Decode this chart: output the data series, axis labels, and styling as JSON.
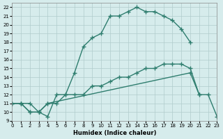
{
  "xlabel": "Humidex (Indice chaleur)",
  "bg_color": "#d6ecec",
  "grid_color": "#b0cccc",
  "line_color": "#2e7d6e",
  "xlim": [
    0,
    23
  ],
  "ylim": [
    9,
    22.5
  ],
  "xticks": [
    0,
    1,
    2,
    3,
    4,
    5,
    6,
    7,
    8,
    9,
    10,
    11,
    12,
    13,
    14,
    15,
    16,
    17,
    18,
    19,
    20,
    21,
    22,
    23
  ],
  "yticks": [
    9,
    10,
    11,
    12,
    13,
    14,
    15,
    16,
    17,
    18,
    19,
    20,
    21,
    22
  ],
  "line1_x": [
    0,
    1,
    2,
    3,
    4,
    5,
    6,
    7,
    8,
    9,
    10,
    11,
    12,
    13,
    14,
    15,
    16,
    17,
    18,
    19,
    20
  ],
  "line1_y": [
    11,
    11,
    11,
    10,
    9.5,
    12,
    12,
    14.5,
    17.5,
    18.5,
    19,
    21,
    21,
    21.5,
    22,
    21.5,
    21.5,
    21,
    20.5,
    19.5,
    18
  ],
  "line2_x": [
    0,
    1,
    2,
    3,
    4,
    5,
    6,
    7,
    8,
    9,
    10,
    11,
    12,
    13,
    14,
    15,
    16,
    17,
    18,
    19,
    20,
    21
  ],
  "line2_y": [
    11,
    11,
    10,
    10,
    11,
    11,
    12,
    12,
    12,
    13,
    13,
    13.5,
    14,
    14,
    14.5,
    15,
    15,
    15.5,
    15.5,
    15.5,
    15,
    12
  ],
  "line3_x": [
    0,
    1,
    2,
    3,
    4,
    20,
    21,
    22,
    23
  ],
  "line3_y": [
    11,
    11,
    10,
    10,
    11,
    14.5,
    12,
    12,
    9.5
  ]
}
